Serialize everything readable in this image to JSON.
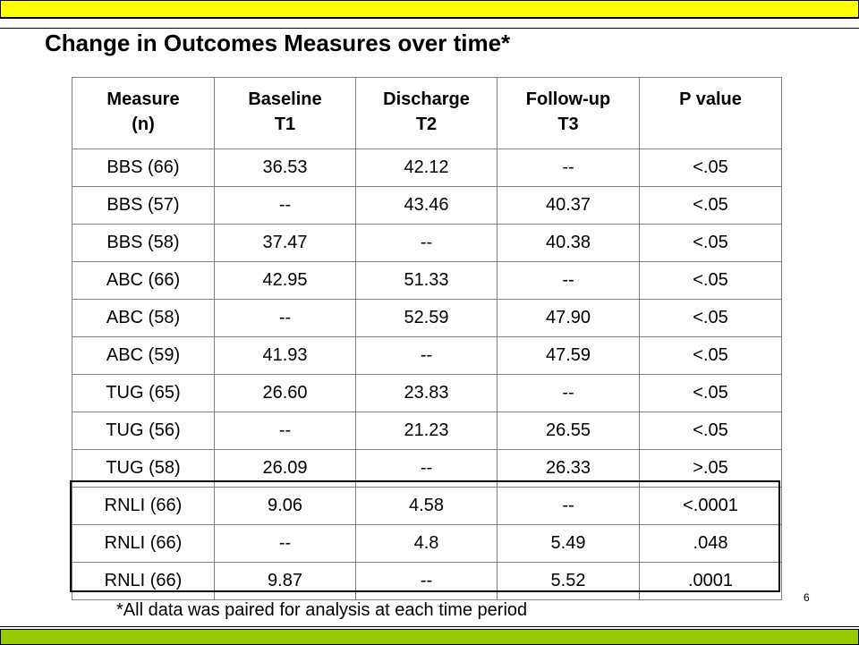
{
  "title": "Change in Outcomes Measures over time*",
  "table": {
    "headers": [
      {
        "line1": "Measure",
        "line2": "(n)"
      },
      {
        "line1": "Baseline",
        "line2": "T1"
      },
      {
        "line1": "Discharge",
        "line2": "T2"
      },
      {
        "line1": "Follow-up",
        "line2": "T3"
      },
      {
        "line1": "P value",
        "line2": ""
      }
    ],
    "rows": [
      [
        "BBS (66)",
        "36.53",
        "42.12",
        "--",
        "<.05"
      ],
      [
        "BBS (57)",
        "--",
        "43.46",
        "40.37",
        "<.05"
      ],
      [
        "BBS (58)",
        "37.47",
        "--",
        "40.38",
        "<.05"
      ],
      [
        "ABC (66)",
        "42.95",
        "51.33",
        "--",
        "<.05"
      ],
      [
        "ABC (58)",
        "--",
        "52.59",
        "47.90",
        "<.05"
      ],
      [
        "ABC (59)",
        "41.93",
        "--",
        "47.59",
        "<.05"
      ],
      [
        "TUG (65)",
        "26.60",
        "23.83",
        "--",
        "<.05"
      ],
      [
        "TUG (56)",
        "--",
        "21.23",
        "26.55",
        "<.05"
      ],
      [
        "TUG (58)",
        "26.09",
        "--",
        "26.33",
        ">.05"
      ],
      [
        "RNLI (66)",
        "9.06",
        "4.58",
        "--",
        "<.0001"
      ],
      [
        "RNLI (66)",
        "--",
        "4.8",
        "5.49",
        ".048"
      ],
      [
        "RNLI (66)",
        "9.87",
        "--",
        "5.52",
        ".0001"
      ]
    ]
  },
  "page_number": "6",
  "footnote": "*All data was paired for analysis at each time period",
  "colors": {
    "top_bar": "#ffff00",
    "bottom_bar": "#99cc00",
    "grid": "#808080"
  }
}
